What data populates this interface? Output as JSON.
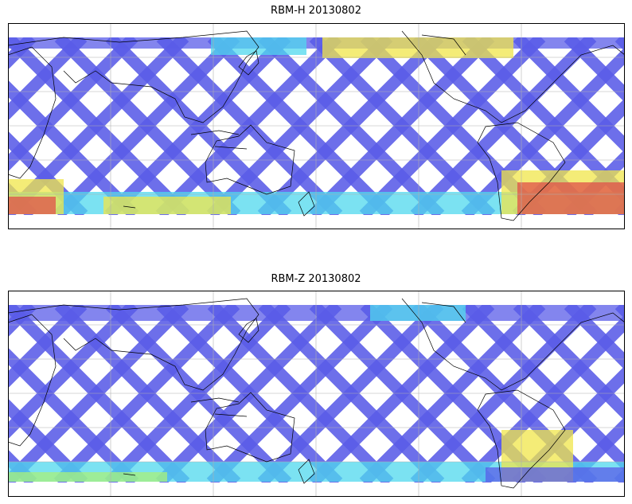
{
  "panels": [
    {
      "title": "RBM-H 20130802",
      "colormap": "jet",
      "colors": {
        "low": "#5a5ce8",
        "mid": "#4fd8ee",
        "high": "#f0e64a",
        "max": "#e0504a"
      },
      "gridlines": true,
      "coastlines": true
    },
    {
      "title": "RBM-Z 20130802",
      "colormap": "jet",
      "colors": {
        "low": "#5a5ce8",
        "mid": "#4fd8ee",
        "high": "#f0e64a",
        "max": "#e0504a"
      },
      "gridlines": true,
      "coastlines": true
    }
  ]
}
